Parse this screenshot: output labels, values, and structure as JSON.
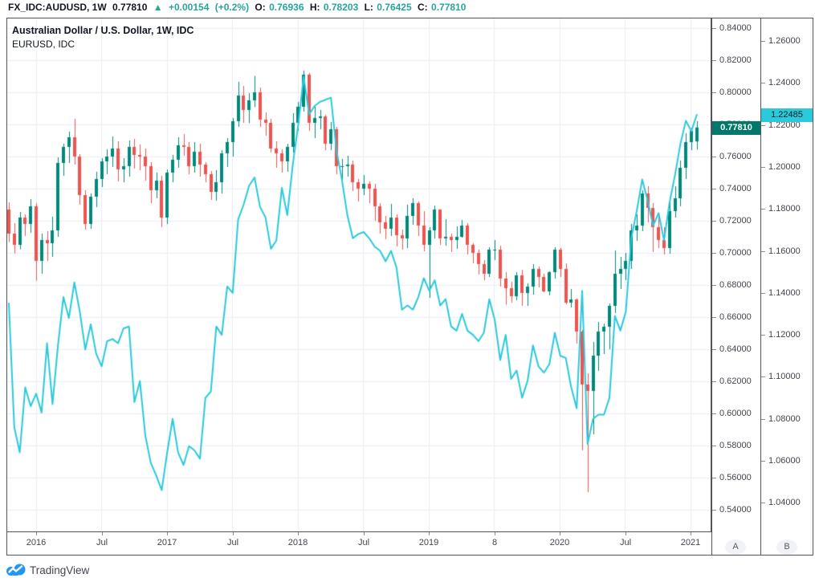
{
  "header": {
    "symbol": "FX_IDC:AUDUSD, 1W",
    "last_price": "0.77810",
    "direction_icon": "▲",
    "change": "+0.00154",
    "change_pct": "(+0.2%)",
    "ohlc": [
      {
        "label": "O:",
        "value": "0.76936"
      },
      {
        "label": "H:",
        "value": "0.78203"
      },
      {
        "label": "L:",
        "value": "0.76425"
      },
      {
        "label": "C:",
        "value": "0.77810"
      }
    ]
  },
  "legend": {
    "primary": "Australian Dollar / U.S. Dollar, 1W, IDC",
    "secondary": "EURUSD, IDC"
  },
  "price_scale_a": {
    "ticks": [
      "0.84000",
      "0.82000",
      "0.80000",
      "0.78000",
      "0.76000",
      "0.74000",
      "0.72000",
      "0.70000",
      "0.68000",
      "0.66000",
      "0.64000",
      "0.62000",
      "0.60000",
      "0.58000",
      "0.56000",
      "0.54000"
    ],
    "price_label": "0.77810",
    "button": "A"
  },
  "price_scale_b": {
    "ticks": [
      "1.26000",
      "1.24000",
      "1.22000",
      "1.20000",
      "1.18000",
      "1.16000",
      "1.14000",
      "1.12000",
      "1.10000",
      "1.08000",
      "1.06000",
      "1.04000"
    ],
    "price_label": "1.22485",
    "button": "B"
  },
  "time_axis": {
    "labels": [
      "2016",
      "Jul",
      "2017",
      "Jul",
      "2018",
      "Jul",
      "2019",
      "8",
      "2020",
      "Jul",
      "2021"
    ]
  },
  "watermark": {
    "brand": "TradingView"
  },
  "colors": {
    "up": "#00897B",
    "down": "#EF5350",
    "line": "#2BC9DC",
    "grid": "#E9EEF6",
    "label_a_bg": "#00796B",
    "label_b_bg": "#2BC9DC",
    "accent_text": "#26A69A",
    "logo_blue": "#2196F3"
  },
  "chart_data": {
    "type": [
      "candlestick",
      "line"
    ],
    "title": "Australian Dollar / U.S. Dollar, 1W, IDC",
    "overlay_title": "EURUSD, IDC",
    "ylim_a": [
      0.5255,
      0.846
    ],
    "ylim_b": [
      1.0256,
      1.2707
    ],
    "x_tick_labels": [
      "2016",
      "Jul",
      "2017",
      "Jul",
      "2018",
      "Jul",
      "2019",
      "8",
      "2020",
      "Jul",
      "2021"
    ],
    "series": [
      {
        "name": "AUDUSD",
        "type": "candlestick",
        "scale": "a",
        "ohlc": [
          [
            0.727,
            0.7315,
            0.7068,
            0.712
          ],
          [
            0.712,
            0.7185,
            0.6996,
            0.705
          ],
          [
            0.705,
            0.7255,
            0.7022,
            0.722
          ],
          [
            0.722,
            0.724,
            0.7105,
            0.718
          ],
          [
            0.718,
            0.7335,
            0.7125,
            0.729
          ],
          [
            0.729,
            0.731,
            0.6827,
            0.695
          ],
          [
            0.695,
            0.712,
            0.687,
            0.708
          ],
          [
            0.708,
            0.7135,
            0.695,
            0.706
          ],
          [
            0.706,
            0.7225,
            0.6975,
            0.714
          ],
          [
            0.714,
            0.7595,
            0.71,
            0.756
          ],
          [
            0.756,
            0.768,
            0.748,
            0.766
          ],
          [
            0.766,
            0.7755,
            0.756,
            0.772
          ],
          [
            0.772,
            0.7835,
            0.755,
            0.76
          ],
          [
            0.76,
            0.7615,
            0.73,
            0.736
          ],
          [
            0.736,
            0.739,
            0.7145,
            0.718
          ],
          [
            0.718,
            0.737,
            0.715,
            0.735
          ],
          [
            0.735,
            0.7505,
            0.7285,
            0.746
          ],
          [
            0.746,
            0.759,
            0.741,
            0.757
          ],
          [
            0.757,
            0.7645,
            0.749,
            0.76
          ],
          [
            0.76,
            0.7725,
            0.7535,
            0.765
          ],
          [
            0.765,
            0.7695,
            0.7445,
            0.752
          ],
          [
            0.752,
            0.759,
            0.744,
            0.754
          ],
          [
            0.754,
            0.77,
            0.7475,
            0.766
          ],
          [
            0.766,
            0.771,
            0.7525,
            0.761
          ],
          [
            0.761,
            0.7675,
            0.7515,
            0.76
          ],
          [
            0.76,
            0.765,
            0.745,
            0.754
          ],
          [
            0.754,
            0.7565,
            0.731,
            0.739
          ],
          [
            0.739,
            0.75,
            0.734,
            0.745
          ],
          [
            0.745,
            0.748,
            0.716,
            0.722
          ],
          [
            0.722,
            0.752,
            0.718,
            0.75
          ],
          [
            0.75,
            0.761,
            0.744,
            0.758
          ],
          [
            0.758,
            0.772,
            0.753,
            0.767
          ],
          [
            0.767,
            0.774,
            0.7605,
            0.766
          ],
          [
            0.766,
            0.769,
            0.749,
            0.754
          ],
          [
            0.754,
            0.769,
            0.75,
            0.763
          ],
          [
            0.763,
            0.768,
            0.7475,
            0.755
          ],
          [
            0.755,
            0.7565,
            0.744,
            0.749
          ],
          [
            0.749,
            0.751,
            0.733,
            0.738
          ],
          [
            0.738,
            0.7515,
            0.7325,
            0.744
          ],
          [
            0.744,
            0.764,
            0.737,
            0.762
          ],
          [
            0.762,
            0.7715,
            0.7535,
            0.769
          ],
          [
            0.769,
            0.784,
            0.76,
            0.782
          ],
          [
            0.782,
            0.8065,
            0.7785,
            0.798
          ],
          [
            0.798,
            0.804,
            0.781,
            0.789
          ],
          [
            0.789,
            0.7995,
            0.7808,
            0.795
          ],
          [
            0.795,
            0.8102,
            0.7908,
            0.8
          ],
          [
            0.8,
            0.803,
            0.7785,
            0.783
          ],
          [
            0.783,
            0.7875,
            0.773,
            0.781
          ],
          [
            0.781,
            0.7835,
            0.7625,
            0.765
          ],
          [
            0.765,
            0.7695,
            0.753,
            0.762
          ],
          [
            0.762,
            0.7645,
            0.75,
            0.757
          ],
          [
            0.757,
            0.768,
            0.7505,
            0.766
          ],
          [
            0.766,
            0.787,
            0.7625,
            0.781
          ],
          [
            0.781,
            0.794,
            0.776,
            0.791
          ],
          [
            0.791,
            0.8136,
            0.788,
            0.811
          ],
          [
            0.811,
            0.812,
            0.776,
            0.781
          ],
          [
            0.781,
            0.791,
            0.7715,
            0.784
          ],
          [
            0.784,
            0.789,
            0.777,
            0.785
          ],
          [
            0.785,
            0.786,
            0.764,
            0.768
          ],
          [
            0.768,
            0.7815,
            0.764,
            0.777
          ],
          [
            0.777,
            0.7785,
            0.749,
            0.754
          ],
          [
            0.754,
            0.7585,
            0.744,
            0.754
          ],
          [
            0.754,
            0.7605,
            0.7475,
            0.755
          ],
          [
            0.755,
            0.7575,
            0.7385,
            0.744
          ],
          [
            0.744,
            0.746,
            0.732,
            0.74
          ],
          [
            0.74,
            0.7485,
            0.736,
            0.743
          ],
          [
            0.743,
            0.7445,
            0.731,
            0.74
          ],
          [
            0.74,
            0.743,
            0.72,
            0.729
          ],
          [
            0.729,
            0.731,
            0.712,
            0.719
          ],
          [
            0.719,
            0.723,
            0.7085,
            0.715
          ],
          [
            0.715,
            0.7305,
            0.7105,
            0.722
          ],
          [
            0.722,
            0.724,
            0.704,
            0.711
          ],
          [
            0.711,
            0.7145,
            0.702,
            0.709
          ],
          [
            0.709,
            0.73,
            0.703,
            0.723
          ],
          [
            0.723,
            0.734,
            0.7175,
            0.731
          ],
          [
            0.731,
            0.732,
            0.7105,
            0.717
          ],
          [
            0.717,
            0.726,
            0.701,
            0.705
          ],
          [
            0.705,
            0.716,
            0.672,
            0.714
          ],
          [
            0.714,
            0.7295,
            0.709,
            0.727
          ],
          [
            0.727,
            0.727,
            0.705,
            0.709
          ],
          [
            0.709,
            0.721,
            0.7045,
            0.71
          ],
          [
            0.71,
            0.712,
            0.7005,
            0.708
          ],
          [
            0.708,
            0.7165,
            0.7025,
            0.71
          ],
          [
            0.71,
            0.7205,
            0.7095,
            0.717
          ],
          [
            0.717,
            0.7185,
            0.699,
            0.705
          ],
          [
            0.705,
            0.706,
            0.6935,
            0.7
          ],
          [
            0.7,
            0.702,
            0.6865,
            0.693
          ],
          [
            0.693,
            0.6955,
            0.683,
            0.687
          ],
          [
            0.687,
            0.7035,
            0.685,
            0.702
          ],
          [
            0.702,
            0.708,
            0.6955,
            0.702
          ],
          [
            0.702,
            0.7045,
            0.679,
            0.684
          ],
          [
            0.684,
            0.688,
            0.6677,
            0.678
          ],
          [
            0.678,
            0.682,
            0.669,
            0.673
          ],
          [
            0.673,
            0.688,
            0.6705,
            0.686
          ],
          [
            0.686,
            0.6895,
            0.667,
            0.675
          ],
          [
            0.675,
            0.681,
            0.667,
            0.679
          ],
          [
            0.679,
            0.693,
            0.674,
            0.69
          ],
          [
            0.69,
            0.6915,
            0.6785,
            0.685
          ],
          [
            0.685,
            0.687,
            0.6755,
            0.676
          ],
          [
            0.676,
            0.6885,
            0.6735,
            0.688
          ],
          [
            0.688,
            0.7035,
            0.684,
            0.702
          ],
          [
            0.702,
            0.703,
            0.685,
            0.69
          ],
          [
            0.69,
            0.6935,
            0.668,
            0.669
          ],
          [
            0.669,
            0.6775,
            0.666,
            0.671
          ],
          [
            0.671,
            0.6715,
            0.6435,
            0.651
          ],
          [
            0.651,
            0.652,
            0.577,
            0.618
          ],
          [
            0.618,
            0.625,
            0.551,
            0.614
          ],
          [
            0.614,
            0.6445,
            0.587,
            0.636
          ],
          [
            0.636,
            0.657,
            0.6265,
            0.651
          ],
          [
            0.651,
            0.656,
            0.637,
            0.654
          ],
          [
            0.654,
            0.6685,
            0.64,
            0.667
          ],
          [
            0.667,
            0.7015,
            0.6625,
            0.687
          ],
          [
            0.687,
            0.6975,
            0.6775,
            0.69
          ],
          [
            0.69,
            0.7,
            0.683,
            0.695
          ],
          [
            0.695,
            0.718,
            0.69,
            0.714
          ],
          [
            0.714,
            0.724,
            0.7075,
            0.717
          ],
          [
            0.717,
            0.739,
            0.7135,
            0.737
          ],
          [
            0.737,
            0.7415,
            0.719,
            0.728
          ],
          [
            0.728,
            0.731,
            0.7005,
            0.716
          ],
          [
            0.716,
            0.7245,
            0.703,
            0.708
          ],
          [
            0.708,
            0.716,
            0.699,
            0.703
          ],
          [
            0.703,
            0.734,
            0.6995,
            0.726
          ],
          [
            0.726,
            0.7415,
            0.722,
            0.734
          ],
          [
            0.734,
            0.7575,
            0.729,
            0.753
          ],
          [
            0.753,
            0.7745,
            0.746,
            0.769
          ],
          [
            0.769,
            0.778,
            0.764,
            0.776
          ],
          [
            0.7694,
            0.782,
            0.7643,
            0.7781
          ]
        ]
      },
      {
        "name": "EURUSD",
        "type": "line",
        "scale": "b",
        "values": [
          1.135,
          1.076,
          1.064,
          1.095,
          1.086,
          1.092,
          1.083,
          1.116,
          1.087,
          1.115,
          1.138,
          1.128,
          1.145,
          1.131,
          1.113,
          1.125,
          1.111,
          1.105,
          1.117,
          1.118,
          1.116,
          1.123,
          1.124,
          1.088,
          1.098,
          1.072,
          1.059,
          1.053,
          1.046,
          1.064,
          1.08,
          1.064,
          1.058,
          1.067,
          1.065,
          1.061,
          1.09,
          1.093,
          1.124,
          1.12,
          1.143,
          1.14,
          1.175,
          1.182,
          1.191,
          1.195,
          1.181,
          1.176,
          1.161,
          1.165,
          1.19,
          1.177,
          1.201,
          1.22,
          1.243,
          1.225,
          1.229,
          1.231,
          1.232,
          1.233,
          1.208,
          1.194,
          1.177,
          1.166,
          1.168,
          1.169,
          1.166,
          1.162,
          1.16,
          1.155,
          1.16,
          1.152,
          1.132,
          1.134,
          1.132,
          1.138,
          1.147,
          1.141,
          1.146,
          1.134,
          1.137,
          1.124,
          1.122,
          1.13,
          1.122,
          1.12,
          1.117,
          1.121,
          1.137,
          1.127,
          1.108,
          1.12,
          1.099,
          1.103,
          1.09,
          1.098,
          1.115,
          1.105,
          1.102,
          1.106,
          1.121,
          1.11,
          1.109,
          1.095,
          1.085,
          1.141,
          1.068,
          1.08,
          1.082,
          1.082,
          1.09,
          1.129,
          1.122,
          1.131,
          1.166,
          1.179,
          1.194,
          1.184,
          1.172,
          1.178,
          1.165,
          1.183,
          1.196,
          1.211,
          1.222,
          1.217,
          1.2248
        ]
      }
    ]
  }
}
